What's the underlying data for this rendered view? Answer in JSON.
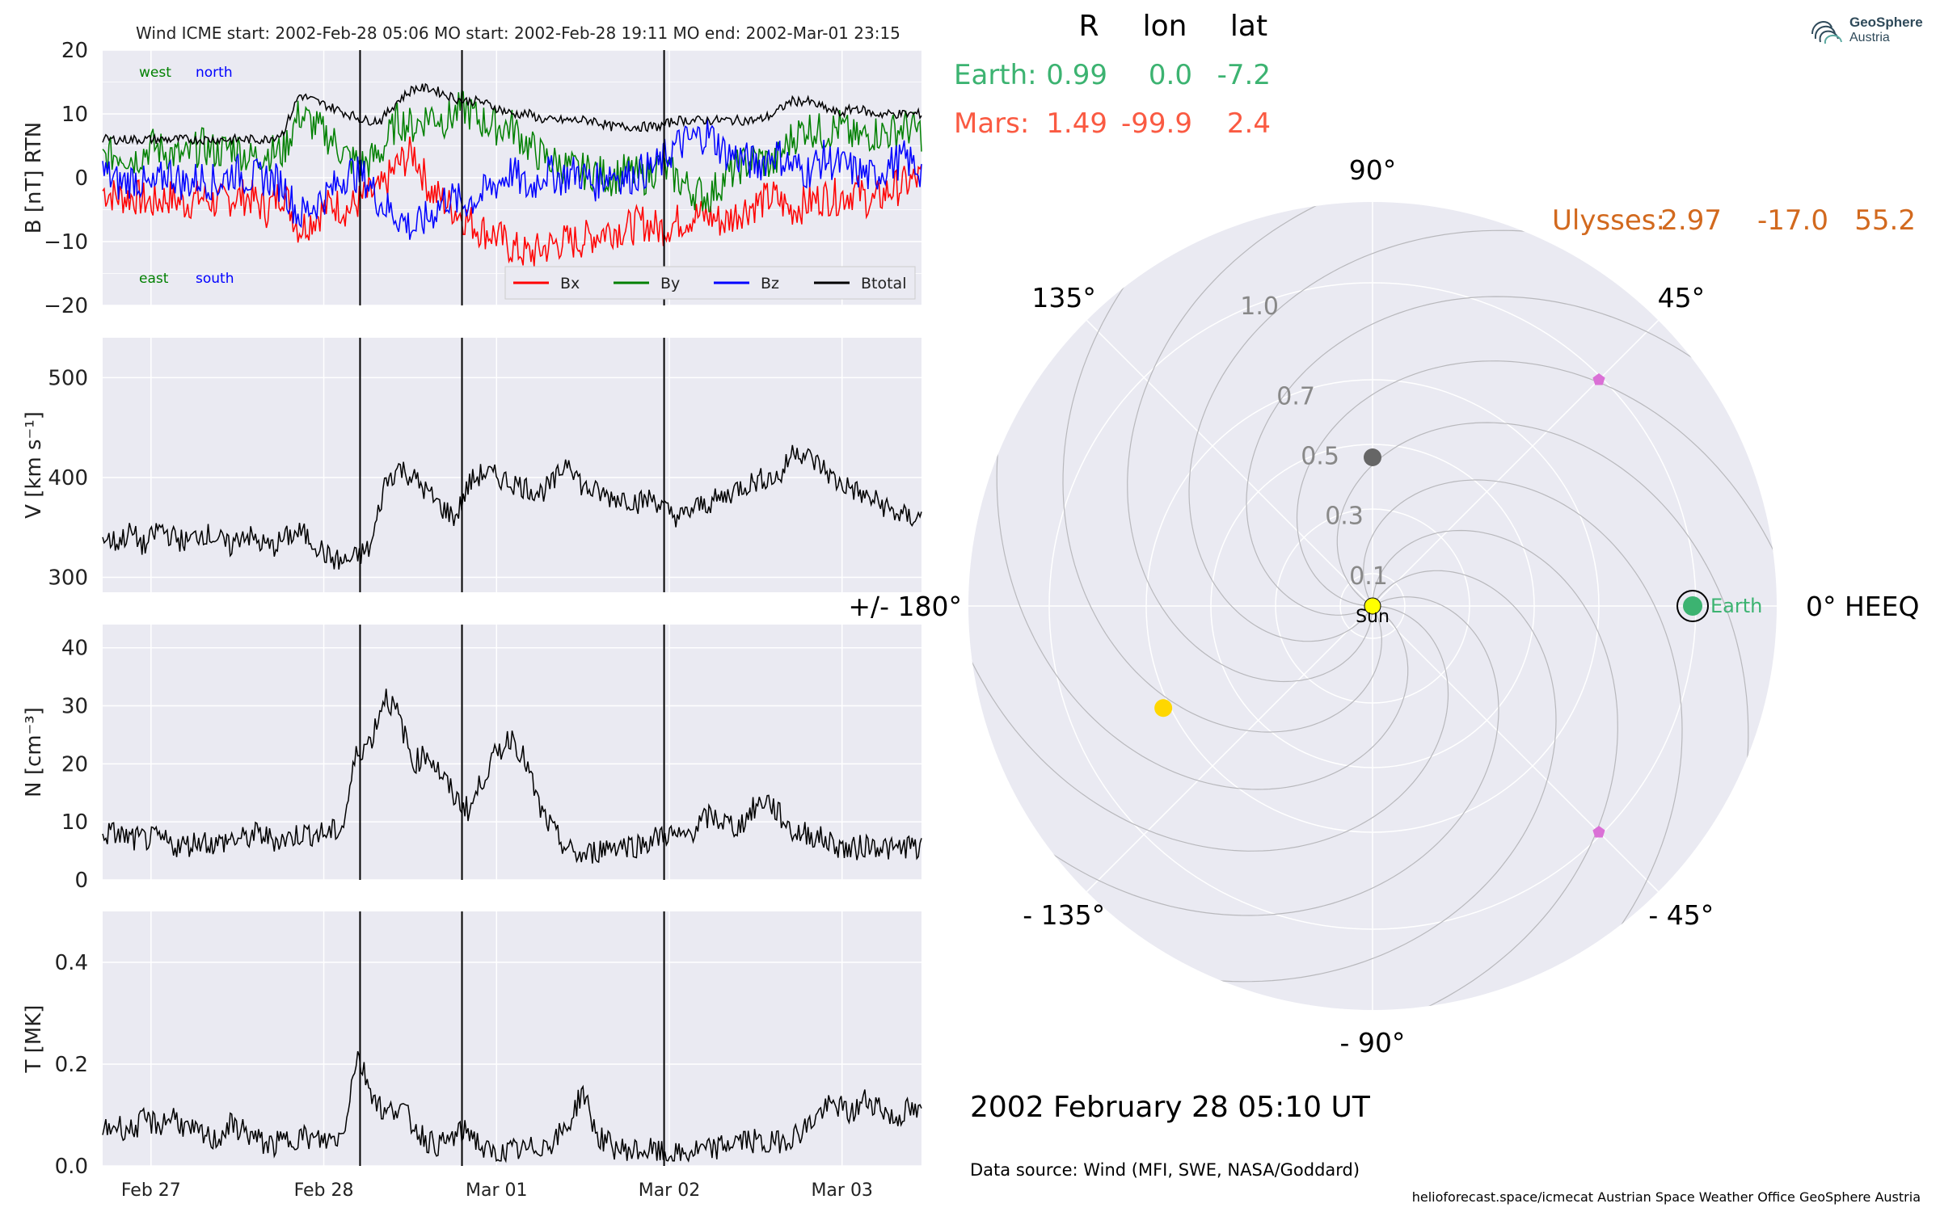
{
  "chart_data": [
    {
      "type": "line",
      "title": "Wind    ICME start: 2002-Feb-28 05:06   MO start: 2002-Feb-28 19:11   MO end: 2002-Mar-01 23:15",
      "ylabel": "B [nT] RTN",
      "ylim": [
        -20,
        20
      ],
      "yticks": [
        "20",
        "10",
        "0",
        "−10",
        "−20"
      ],
      "xticks": [
        "Feb 27",
        "Feb 28",
        "Mar 01",
        "Mar 02",
        "Mar 03"
      ],
      "xlim_days": [
        -1.28,
        3.46
      ],
      "grid": true,
      "legend_placement": "lower-right",
      "corner_labels": {
        "west": "west",
        "north": "north",
        "east": "east",
        "south": "south"
      },
      "event_lines_days": [
        0.21,
        0.8,
        1.97
      ],
      "series": [
        {
          "name": "Bx",
          "color": "#ff0000",
          "values": [
            -2,
            -3,
            -3,
            -4,
            -3,
            -4,
            -3,
            -4,
            -3,
            -3,
            -5,
            -2,
            -8,
            -6,
            -4,
            -5,
            -3,
            -2,
            2,
            4,
            -2,
            -4,
            -6,
            -8,
            -9,
            -11,
            -12,
            -11,
            -10,
            -10,
            -9,
            -8,
            -8,
            -7,
            -8,
            -7,
            -6,
            -6,
            -7,
            -5,
            -4,
            -3,
            -5,
            -4,
            -3,
            -3,
            -2,
            -4,
            -2,
            -1,
            0
          ]
        },
        {
          "name": "By",
          "color": "#008000",
          "values": [
            3,
            4,
            3,
            5,
            4,
            3,
            5,
            4,
            5,
            3,
            4,
            4,
            10,
            8,
            6,
            3,
            2,
            4,
            9,
            8,
            10,
            9,
            11,
            9,
            8,
            8,
            5,
            3,
            2,
            1,
            1,
            0,
            1,
            0,
            2,
            0,
            -2,
            -3,
            0,
            2,
            3,
            2,
            6,
            8,
            7,
            8,
            6,
            7,
            7,
            8,
            7
          ]
        },
        {
          "name": "Bz",
          "color": "#0000ff",
          "values": [
            1,
            -1,
            0,
            -2,
            1,
            -1,
            0,
            -1,
            1,
            0,
            0,
            -1,
            -6,
            -4,
            -2,
            1,
            0,
            -4,
            -6,
            -8,
            -6,
            -3,
            -4,
            -3,
            -1,
            1,
            -2,
            1,
            0,
            1,
            -1,
            1,
            0,
            1,
            2,
            5,
            6,
            7,
            4,
            3,
            2,
            4,
            2,
            1,
            3,
            2,
            1,
            0,
            2,
            3,
            1
          ]
        },
        {
          "name": "Btotal",
          "color": "#000000",
          "values": [
            6,
            6,
            6,
            6,
            6,
            6,
            6,
            6,
            6,
            6,
            6,
            7,
            13,
            12,
            11,
            10,
            9,
            9,
            12,
            14,
            14,
            13,
            12,
            12,
            11,
            10,
            10,
            9,
            9,
            9,
            9,
            8,
            8,
            8,
            8,
            9,
            9,
            9,
            9,
            9,
            9,
            10,
            12,
            12,
            11,
            10,
            11,
            10,
            10,
            10,
            10
          ]
        }
      ]
    },
    {
      "type": "line",
      "ylabel": "V [km s⁻¹]",
      "ylim": [
        285,
        540
      ],
      "yticks": [
        "500",
        "400",
        "300"
      ],
      "xticks": [
        "Feb 27",
        "Feb 28",
        "Mar 01",
        "Mar 02",
        "Mar 03"
      ],
      "grid": true,
      "series": [
        {
          "name": "",
          "color": "#000000",
          "values": [
            340,
            335,
            345,
            330,
            350,
            340,
            335,
            345,
            340,
            330,
            345,
            335,
            330,
            340,
            345,
            335,
            320,
            315,
            320,
            330,
            395,
            410,
            400,
            385,
            370,
            360,
            395,
            405,
            400,
            395,
            390,
            385,
            395,
            420,
            390,
            385,
            380,
            380,
            375,
            380,
            365,
            360,
            370,
            375,
            380,
            390,
            395,
            400,
            400,
            430,
            420,
            410,
            395,
            390,
            380,
            375,
            365,
            360,
            360
          ]
        }
      ]
    },
    {
      "type": "line",
      "ylabel": "N [cm⁻³]",
      "ylim": [
        0,
        44
      ],
      "yticks": [
        "40",
        "30",
        "20",
        "10",
        "0"
      ],
      "xticks": [
        "Feb 27",
        "Feb 28",
        "Mar 01",
        "Mar 02",
        "Mar 03"
      ],
      "grid": true,
      "series": [
        {
          "name": "",
          "color": "#000000",
          "values": [
            8,
            8,
            7,
            7,
            7,
            6,
            6,
            7,
            6,
            7,
            7,
            8,
            7,
            7,
            8,
            8,
            8,
            9,
            22,
            24,
            32,
            28,
            20,
            22,
            18,
            14,
            12,
            18,
            22,
            25,
            20,
            12,
            8,
            5,
            4,
            5,
            6,
            6,
            6,
            7,
            8,
            7,
            9,
            11,
            10,
            9,
            12,
            14,
            11,
            8,
            8,
            7,
            6,
            5,
            6,
            6,
            5,
            6,
            5
          ]
        }
      ]
    },
    {
      "type": "line",
      "ylabel": "T [MK]",
      "ylim": [
        0,
        0.5
      ],
      "yticks": [
        "0.4",
        "0.2",
        "0.0"
      ],
      "xticks": [
        "Feb 27",
        "Feb 28",
        "Mar 01",
        "Mar 02",
        "Mar 03"
      ],
      "grid": true,
      "series": [
        {
          "name": "",
          "color": "#000000",
          "values": [
            0.07,
            0.08,
            0.07,
            0.09,
            0.08,
            0.1,
            0.07,
            0.06,
            0.05,
            0.08,
            0.07,
            0.05,
            0.04,
            0.05,
            0.06,
            0.05,
            0.05,
            0.06,
            0.22,
            0.15,
            0.1,
            0.12,
            0.08,
            0.05,
            0.04,
            0.06,
            0.07,
            0.03,
            0.02,
            0.03,
            0.03,
            0.04,
            0.05,
            0.08,
            0.15,
            0.06,
            0.04,
            0.03,
            0.03,
            0.03,
            0.02,
            0.02,
            0.03,
            0.03,
            0.04,
            0.05,
            0.05,
            0.04,
            0.05,
            0.06,
            0.08,
            0.11,
            0.12,
            0.1,
            0.13,
            0.12,
            0.09,
            0.11,
            0.1
          ]
        }
      ]
    },
    {
      "type": "polar-scatter",
      "date_text": "2002 February 28  05:10 UT",
      "radial_ticks": [
        "0.1",
        "0.3",
        "0.5",
        "0.7",
        "1.0"
      ],
      "radial_tick_values": [
        0.1,
        0.3,
        0.5,
        0.7,
        1.0
      ],
      "angle_labels": [
        {
          "text": "0° HEEQ",
          "deg": 0
        },
        {
          "text": "45°",
          "deg": 45
        },
        {
          "text": "90°",
          "deg": 90
        },
        {
          "text": "135°",
          "deg": 135
        },
        {
          "text": "+/- 180°",
          "deg": 180
        },
        {
          "text": "- 135°",
          "deg": 225
        },
        {
          "text": "- 90°",
          "deg": 270
        },
        {
          "text": "- 45°",
          "deg": 315
        }
      ],
      "table_header": [
        "R",
        "lon",
        "lat"
      ],
      "table_rows": [
        {
          "name": "Earth:",
          "R": "0.99",
          "lon": "0.0",
          "lat": "-7.2",
          "color": "#3cb371"
        },
        {
          "name": "Mars:",
          "R": "1.49",
          "lon": "-99.9",
          "lat": "2.4",
          "color": "#fa5a42"
        }
      ],
      "ulysses_row": {
        "name": "Ulysses:",
        "R": "2.97",
        "lon": "-17.0",
        "lat": "55.2",
        "color": "#d2691e"
      },
      "points": [
        {
          "label": "Sun",
          "r": 0.0,
          "lon_deg": 0,
          "color": "#ffff00"
        },
        {
          "label": "Earth",
          "r": 0.99,
          "lon_deg": 0,
          "color": "#3cb371"
        },
        {
          "label": "",
          "r": 0.46,
          "lon_deg": 90,
          "color": "#666666"
        },
        {
          "label": "",
          "r": 0.72,
          "lon_deg": 206,
          "color": "#ffd700"
        },
        {
          "label": "",
          "r": 0.99,
          "lon_deg": 45,
          "color": "#da70d6"
        },
        {
          "label": "",
          "r": 0.99,
          "lon_deg": -45,
          "color": "#da70d6"
        }
      ]
    }
  ],
  "data_source": "Data source: Wind (MFI, SWE, NASA/Goddard)",
  "footer": "helioforecast.space/icmecat   Austrian Space Weather Office   GeoSphere Austria",
  "logo": {
    "line1": "GeoSphere",
    "line2": "Austria"
  },
  "colors": {
    "panel_bg": "#eaeaf2",
    "grid": "#ffffff"
  }
}
